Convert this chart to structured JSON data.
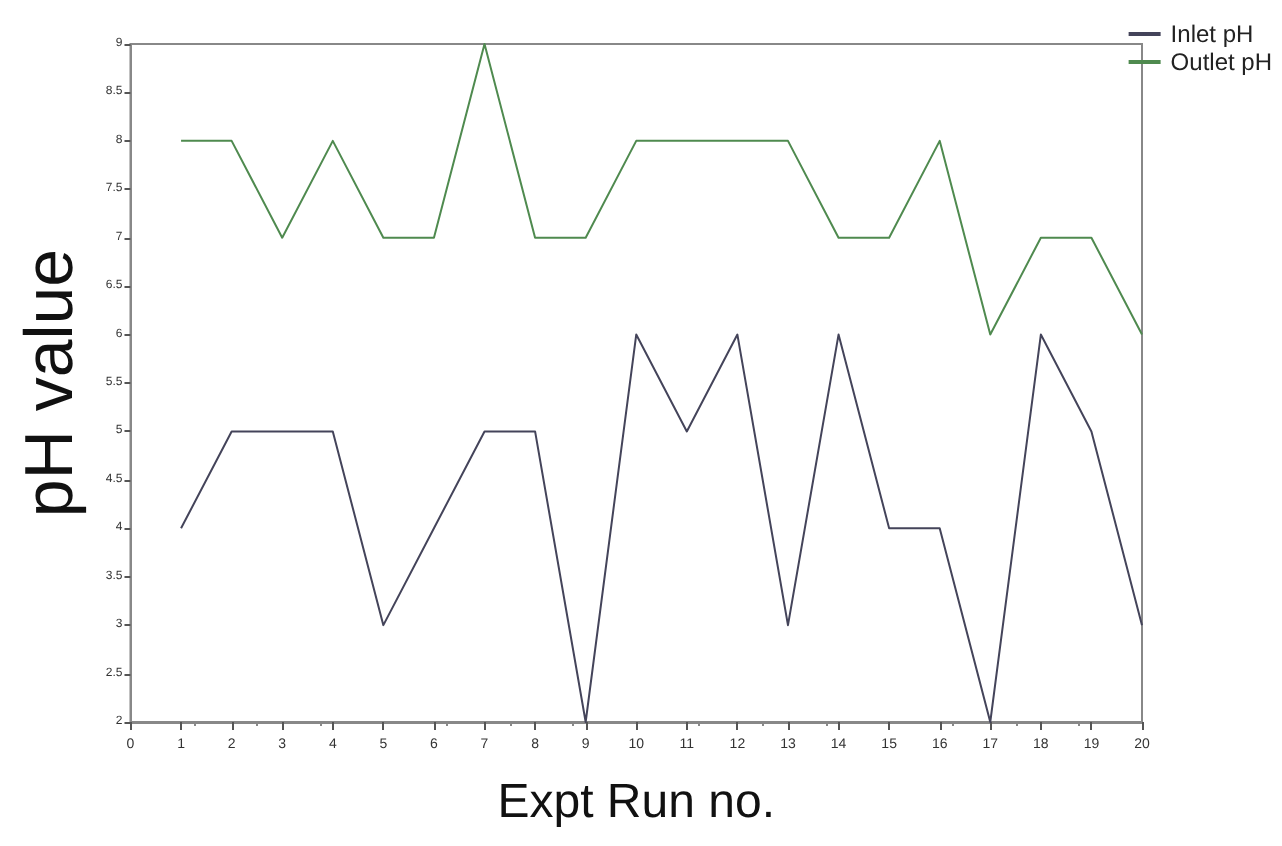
{
  "chart_data": {
    "type": "line",
    "xlabel": "Expt Run no.",
    "ylabel": "pH value",
    "x": [
      1,
      2,
      3,
      4,
      5,
      6,
      7,
      8,
      9,
      10,
      11,
      12,
      13,
      14,
      15,
      16,
      17,
      18,
      19,
      20
    ],
    "series": [
      {
        "name": "Inlet pH",
        "color": "#44445a",
        "values": [
          4,
          5,
          5,
          5,
          3,
          4,
          5,
          5,
          2,
          6,
          5,
          6,
          3,
          6,
          4,
          4,
          2,
          6,
          5,
          3
        ]
      },
      {
        "name": "Outlet pH",
        "color": "#4f8a4f",
        "values": [
          8,
          8,
          7,
          8,
          7,
          7,
          9,
          7,
          7,
          8,
          8,
          8,
          8,
          7,
          7,
          8,
          6,
          7,
          7,
          6
        ]
      }
    ],
    "xlim": [
      0,
      20
    ],
    "xticks": [
      0,
      1,
      2,
      3,
      4,
      5,
      6,
      7,
      8,
      9,
      10,
      11,
      12,
      13,
      14,
      15,
      16,
      17,
      18,
      19,
      20
    ],
    "ylim": [
      2,
      9
    ],
    "yticks": [
      2,
      2.5,
      3,
      3.5,
      4,
      4.5,
      5,
      5.5,
      6,
      6.5,
      7,
      7.5,
      8,
      8.5,
      9
    ],
    "grid": false,
    "legend": "top right",
    "marker": "none",
    "line_style": "solid"
  }
}
